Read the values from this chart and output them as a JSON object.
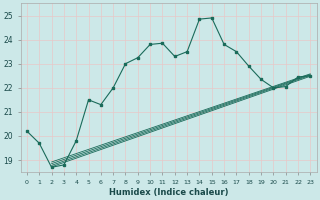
{
  "xlabel": "Humidex (Indice chaleur)",
  "bg_color": "#cce8e8",
  "grid_color": "#b0d8d8",
  "line_color": "#1a6b5a",
  "xlim": [
    -0.5,
    23.5
  ],
  "ylim": [
    18.5,
    25.5
  ],
  "yticks": [
    19,
    20,
    21,
    22,
    23,
    24,
    25
  ],
  "xticks": [
    0,
    1,
    2,
    3,
    4,
    5,
    6,
    7,
    8,
    9,
    10,
    11,
    12,
    13,
    14,
    15,
    16,
    17,
    18,
    19,
    20,
    21,
    22,
    23
  ],
  "xtick_labels": [
    "0",
    "1",
    "2",
    "3",
    "4",
    "5",
    "6",
    "7",
    "8",
    "9",
    "10",
    "11",
    "12",
    "13",
    "14",
    "15",
    "16",
    "17",
    "18",
    "19",
    "20",
    "21",
    "22",
    "23"
  ],
  "main_line_x": [
    0,
    1,
    2,
    3,
    4,
    5,
    6,
    7,
    8,
    9,
    10,
    11,
    12,
    13,
    14,
    15,
    16,
    17,
    18,
    19,
    20,
    21,
    22,
    23
  ],
  "main_line_y": [
    20.2,
    19.7,
    18.7,
    18.8,
    19.8,
    21.5,
    21.3,
    22.0,
    23.0,
    23.25,
    23.8,
    23.85,
    23.3,
    23.5,
    24.85,
    24.9,
    23.8,
    23.5,
    22.9,
    22.35,
    22.0,
    22.05,
    22.45,
    22.5
  ],
  "diag_lines": [
    {
      "x": [
        2,
        23
      ],
      "y": [
        18.72,
        22.48
      ]
    },
    {
      "x": [
        2,
        23
      ],
      "y": [
        18.78,
        22.52
      ]
    },
    {
      "x": [
        2,
        23
      ],
      "y": [
        18.85,
        22.55
      ]
    },
    {
      "x": [
        2,
        23
      ],
      "y": [
        18.92,
        22.58
      ]
    }
  ]
}
